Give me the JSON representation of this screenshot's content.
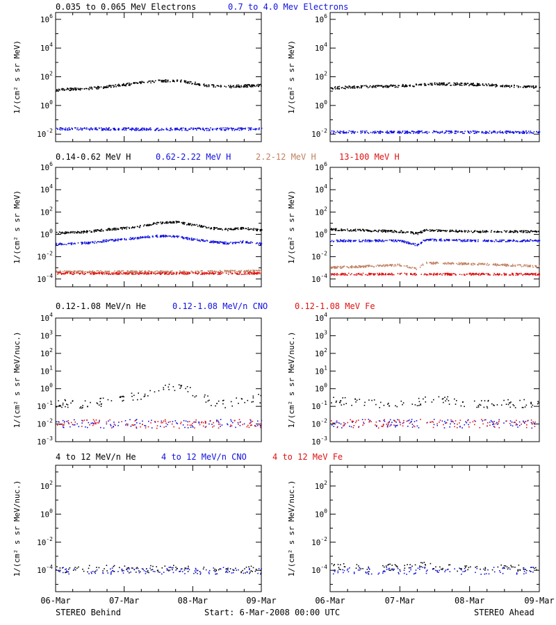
{
  "footer": {
    "left": "STEREO Behind",
    "center": "Start:  6-Mar-2008 00:00 UTC",
    "right": "STEREO Ahead"
  },
  "x_ticks": [
    "06-Mar",
    "07-Mar",
    "08-Mar",
    "09-Mar"
  ],
  "colors": {
    "black": "#000000",
    "blue": "#1010e0",
    "brown": "#c08060",
    "red": "#e01010"
  },
  "chart_data": [
    {
      "type": "scatter",
      "row": 0,
      "ylabel": "1/(cm² s sr MeV)",
      "ylog": true,
      "ylim": [
        0.003,
        3000000
      ],
      "yticks": [
        0.01,
        1,
        100,
        10000,
        1000000
      ],
      "ytick_labels": [
        "10^-2",
        "10^0",
        "10^2",
        "10^4",
        "10^6"
      ],
      "legend": [
        {
          "text": "0.035 to 0.065 MeV Electrons",
          "color": "#000000"
        },
        {
          "text": "0.7 to 4.0 Mev Electrons",
          "color": "#1010e0"
        }
      ],
      "panels": [
        {
          "side": "STEREO Behind",
          "series": [
            {
              "color": "#000000",
              "x": [
                0,
                0.25,
                0.5,
                0.75,
                1.0,
                1.25,
                1.5,
                1.75,
                2.0,
                2.25,
                2.5,
                2.75,
                3.0
              ],
              "y": [
                13,
                15,
                17,
                22,
                30,
                45,
                55,
                60,
                40,
                25,
                22,
                25,
                27
              ]
            },
            {
              "color": "#1010e0",
              "x": [
                0,
                1,
                2,
                3
              ],
              "y": [
                0.025,
                0.025,
                0.024,
                0.025
              ]
            }
          ]
        },
        {
          "side": "STEREO Ahead",
          "series": [
            {
              "color": "#000000",
              "x": [
                0,
                0.5,
                1.0,
                1.3,
                1.5,
                2.0,
                2.5,
                3.0
              ],
              "y": [
                18,
                22,
                25,
                30,
                35,
                32,
                25,
                20
              ]
            },
            {
              "color": "#1010e0",
              "x": [
                0,
                1,
                2,
                3
              ],
              "y": [
                0.015,
                0.015,
                0.015,
                0.015
              ]
            }
          ]
        }
      ]
    },
    {
      "type": "scatter",
      "row": 1,
      "ylabel": "1/(cm² s sr MeV)",
      "ylog": true,
      "ylim": [
        2e-05,
        1000000
      ],
      "yticks": [
        0.0001,
        0.01,
        1,
        100,
        10000,
        1000000
      ],
      "ytick_labels": [
        "10^-4",
        "10^-2",
        "10^0",
        "10^2",
        "10^4",
        "10^6"
      ],
      "legend": [
        {
          "text": "0.14-0.62 MeV H",
          "color": "#000000"
        },
        {
          "text": "0.62-2.22 MeV H",
          "color": "#1010e0"
        },
        {
          "text": "2.2-12 MeV H",
          "color": "#c08060"
        },
        {
          "text": "13-100 MeV H",
          "color": "#e01010"
        }
      ],
      "panels": [
        {
          "side": "STEREO Behind",
          "series": [
            {
              "color": "#000000",
              "x": [
                0,
                0.25,
                0.5,
                0.75,
                1.0,
                1.25,
                1.5,
                1.75,
                2.0,
                2.25,
                2.5,
                2.75,
                3.0
              ],
              "y": [
                1.5,
                1.6,
                2.0,
                3.0,
                4.0,
                6.0,
                12,
                14,
                8,
                4,
                3,
                4,
                2.5
              ]
            },
            {
              "color": "#1010e0",
              "x": [
                0,
                0.25,
                0.5,
                0.75,
                1.0,
                1.25,
                1.5,
                1.75,
                2.0,
                2.25,
                2.5,
                2.75,
                3.0
              ],
              "y": [
                0.15,
                0.16,
                0.2,
                0.3,
                0.4,
                0.6,
                0.8,
                0.7,
                0.4,
                0.25,
                0.18,
                0.25,
                0.15
              ]
            },
            {
              "color": "#c08060",
              "x": [
                0,
                1,
                2,
                3
              ],
              "y": [
                0.0005,
                0.0005,
                0.0005,
                0.0006
              ]
            },
            {
              "color": "#e01010",
              "x": [
                0,
                1,
                2,
                3
              ],
              "y": [
                0.00035,
                0.00035,
                0.00035,
                0.00035
              ]
            }
          ]
        },
        {
          "side": "STEREO Ahead",
          "series": [
            {
              "color": "#000000",
              "x": [
                0,
                0.5,
                1.0,
                1.25,
                1.35,
                1.5,
                2.0,
                2.5,
                3.0
              ],
              "y": [
                3.0,
                2.5,
                2.0,
                1.3,
                2.5,
                2.5,
                2.0,
                2.0,
                2.0
              ]
            },
            {
              "color": "#1010e0",
              "x": [
                0,
                0.5,
                1.0,
                1.25,
                1.35,
                1.5,
                2.0,
                2.5,
                3.0
              ],
              "y": [
                0.3,
                0.3,
                0.3,
                0.12,
                0.35,
                0.35,
                0.3,
                0.3,
                0.3
              ]
            },
            {
              "color": "#c08060",
              "x": [
                0,
                0.5,
                1.0,
                1.25,
                1.35,
                1.5,
                2.0,
                2.5,
                3.0
              ],
              "y": [
                0.0012,
                0.0015,
                0.002,
                0.0008,
                0.003,
                0.003,
                0.0025,
                0.002,
                0.0015
              ]
            },
            {
              "color": "#e01010",
              "x": [
                0,
                1,
                2,
                3
              ],
              "y": [
                0.0003,
                0.0003,
                0.0003,
                0.0003
              ]
            }
          ]
        }
      ]
    },
    {
      "type": "scatter",
      "row": 2,
      "ylabel": "1/(cm² s sr MeV/nuc.)",
      "ylog": true,
      "ylim": [
        0.001,
        10000
      ],
      "yticks": [
        0.001,
        0.01,
        0.1,
        1,
        10,
        100,
        1000,
        10000
      ],
      "ytick_labels": [
        "10^-3",
        "10^-2",
        "10^-1",
        "10^0",
        "10^1",
        "10^2",
        "10^3",
        "10^4"
      ],
      "legend": [
        {
          "text": "0.12-1.08 MeV/n He",
          "color": "#000000"
        },
        {
          "text": "0.12-1.08 MeV/n CNO",
          "color": "#1010e0"
        },
        {
          "text": "0.12-1.08 MeV Fe",
          "color": "#e01010"
        }
      ],
      "panels": [
        {
          "side": "STEREO Behind",
          "series": [
            {
              "color": "#000000",
              "x": [
                0,
                0.25,
                0.5,
                0.75,
                1.0,
                1.25,
                1.5,
                1.75,
                2.0,
                2.25,
                2.5,
                2.75,
                3.0
              ],
              "y": [
                0.15,
                0.15,
                0.15,
                0.2,
                0.3,
                0.4,
                1.0,
                1.5,
                0.6,
                0.2,
                0.15,
                0.3,
                0.3
              ]
            },
            {
              "color": "#1010e0",
              "x": [
                0,
                1,
                2,
                3
              ],
              "y": [
                0.011,
                0.011,
                0.011,
                0.011
              ]
            },
            {
              "color": "#e01010",
              "x": [
                0,
                1,
                2,
                3
              ],
              "y": [
                0.011,
                0.011,
                0.011,
                0.011
              ]
            }
          ]
        },
        {
          "side": "STEREO Ahead",
          "series": [
            {
              "color": "#000000",
              "x": [
                0,
                0.25,
                0.5,
                0.75,
                1.0,
                1.25,
                1.5,
                1.75,
                2.0,
                2.25,
                2.5,
                2.75,
                3.0
              ],
              "y": [
                0.25,
                0.2,
                0.18,
                0.15,
                0.15,
                0.2,
                0.25,
                0.2,
                0.15,
                0.15,
                0.15,
                0.15,
                0.15
              ]
            },
            {
              "color": "#1010e0",
              "x": [
                0,
                1,
                2,
                3
              ],
              "y": [
                0.011,
                0.011,
                0.011,
                0.011
              ]
            },
            {
              "color": "#e01010",
              "x": [
                0,
                1,
                2,
                3
              ],
              "y": [
                0.011,
                0.011,
                0.011,
                0.011
              ]
            }
          ]
        }
      ]
    },
    {
      "type": "scatter",
      "row": 3,
      "ylabel": "1/(cm² s sr MeV/nuc.)",
      "ylog": true,
      "ylim": [
        3e-06,
        3000
      ],
      "yticks": [
        0.0001,
        0.01,
        1,
        100
      ],
      "ytick_labels": [
        "10^-4",
        "10^-2",
        "10^0",
        "10^2"
      ],
      "legend": [
        {
          "text": "4 to 12 MeV/n He",
          "color": "#000000"
        },
        {
          "text": "4 to 12 MeV/n CNO",
          "color": "#1010e0"
        },
        {
          "text": "4 to 12 MeV Fe",
          "color": "#e01010"
        }
      ],
      "panels": [
        {
          "side": "STEREO Behind",
          "series": [
            {
              "color": "#000000",
              "x": [
                0.1,
                0.6,
                1.1,
                1.8,
                1.9
              ],
              "y": [
                0.00012,
                0.00015,
                0.00012,
                0.00015,
                0.00012
              ]
            },
            {
              "color": "#1010e0",
              "x": [
                0,
                1,
                2,
                3
              ],
              "y": [
                0.0001,
                0.0001,
                0.0001,
                0.0001
              ]
            }
          ]
        },
        {
          "side": "STEREO Ahead",
          "series": [
            {
              "color": "#000000",
              "x": [
                0.3,
                0.6,
                0.9,
                1.2,
                1.5,
                2.0,
                2.6
              ],
              "y": [
                0.00018,
                0.00015,
                0.00018,
                0.0003,
                0.00018,
                0.00015,
                0.00015
              ]
            },
            {
              "color": "#1010e0",
              "x": [
                0,
                1,
                2,
                3
              ],
              "y": [
                0.0001,
                0.0001,
                0.0001,
                0.0001
              ]
            }
          ]
        }
      ]
    }
  ]
}
